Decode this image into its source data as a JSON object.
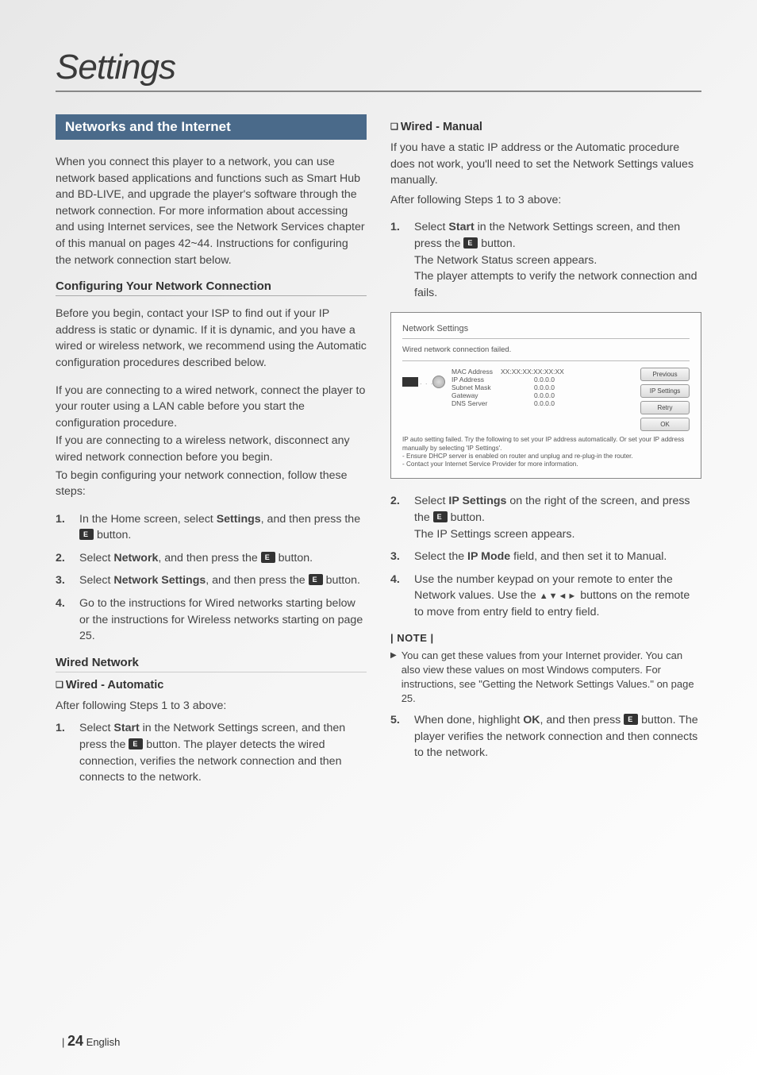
{
  "page_title": "Settings",
  "section_header": "Networks and the Internet",
  "intro": "When you connect this player to a network, you can use network based applications and functions such as Smart Hub and BD-LIVE, and upgrade the player's software through the network connection. For more information about accessing and using Internet services, see the Network Services chapter of this manual on pages 42~44. Instructions for configuring the network connection start below.",
  "config_heading": "Configuring Your Network Connection",
  "config_p1": "Before you begin, contact your ISP to find out if your IP address is static or dynamic. If it is dynamic, and you have a wired or wireless network, we recommend using the Automatic configuration procedures described below.",
  "config_p2": "If you are connecting to a wired network, connect the player to your router using a LAN cable before you start the configuration procedure.",
  "config_p3": "If you are connecting to a wireless network, disconnect any wired network connection before you begin.",
  "config_p4": "To begin configuring your network connection, follow these steps:",
  "steps1": [
    {
      "n": "1.",
      "pre": "In the Home screen, select ",
      "b": "Settings",
      "post": ", and then press the ",
      "icon": true,
      "tail": " button."
    },
    {
      "n": "2.",
      "pre": "Select ",
      "b": "Network",
      "post": ", and then press the ",
      "icon": true,
      "tail": " button."
    },
    {
      "n": "3.",
      "pre": "Select ",
      "b": "Network Settings",
      "post": ", and then press the ",
      "icon": true,
      "tail": " button."
    },
    {
      "n": "4.",
      "pre": "Go to the instructions for Wired networks starting below or the instructions for Wireless networks starting on page 25.",
      "b": "",
      "post": "",
      "icon": false,
      "tail": ""
    }
  ],
  "wired_heading": "Wired Network",
  "wired_auto_heading": "Wired - Automatic",
  "wired_auto_intro": "After following Steps 1 to 3 above:",
  "wired_auto_step": {
    "n": "1.",
    "pre": "Select ",
    "b": "Start",
    "post": " in the Network Settings screen, and then press the ",
    "icon": true,
    "tail": " button. The player detects the wired connection, verifies the network connection and then connects to the network."
  },
  "wired_manual_heading": "Wired - Manual",
  "wired_manual_intro": "If you have a static IP address or the Automatic procedure does not work, you'll need to set the Network Settings values manually.",
  "wired_manual_intro2": "After following Steps 1 to 3 above:",
  "manual_step1": {
    "n": "1.",
    "pre": "Select ",
    "b": "Start",
    "post": " in the Network Settings screen, and then press the ",
    "icon": true,
    "tail": " button.\nThe Network Status screen appears.\nThe player attempts to verify the network connection and fails."
  },
  "panel": {
    "title": "Network Settings",
    "msg": "Wired network connection failed.",
    "rows": [
      {
        "k": "MAC Address",
        "v": "XX:XX:XX:XX:XX:XX"
      },
      {
        "k": "IP Address",
        "v": "0.0.0.0"
      },
      {
        "k": "Subnet Mask",
        "v": "0.0.0.0"
      },
      {
        "k": "Gateway",
        "v": "0.0.0.0"
      },
      {
        "k": "DNS Server",
        "v": "0.0.0.0"
      }
    ],
    "buttons": [
      "Previous",
      "IP Settings",
      "Retry",
      "OK"
    ],
    "info": "IP auto setting failed. Try the following to set your IP address automatically. Or set your IP address manually by selecting 'IP Settings'.\n- Ensure DHCP server is enabled on router and unplug and re-plug-in the router.\n- Contact your Internet Service Provider for more information."
  },
  "steps2": [
    {
      "n": "2.",
      "pre": "Select ",
      "b": "IP Settings",
      "post": " on the right of the screen, and press the ",
      "icon": true,
      "tail": " button.\nThe IP Settings screen appears."
    },
    {
      "n": "3.",
      "pre": "Select the ",
      "b": "IP Mode",
      "post": " field, and then set it to Manual.",
      "icon": false,
      "tail": ""
    },
    {
      "n": "4.",
      "pre": "Use the number keypad on your remote to enter the Network values. Use the ",
      "b": "",
      "post": "",
      "icon": false,
      "tail": "",
      "arrows": "▲▼◄►",
      "aftertail": " buttons on the remote to move from entry field to entry field."
    }
  ],
  "note_label": "| NOTE |",
  "note_text": "You can get these values from your Internet provider. You can also view these values on most Windows computers. For instructions, see \"Getting the Network Settings Values.\" on page 25.",
  "step5": {
    "n": "5.",
    "pre": "When done, highlight ",
    "b": "OK",
    "post": ", and then press ",
    "icon": true,
    "tail": " button. The player verifies the network connection and then connects to the network."
  },
  "footer_page": "24",
  "footer_lang": "English"
}
